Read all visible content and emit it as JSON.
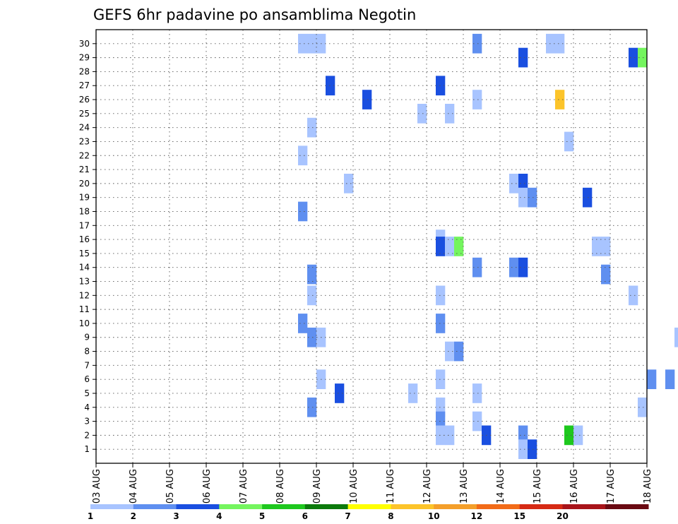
{
  "chart_data": {
    "type": "heatmap",
    "title": "GEFS 6hr padavine po ansamblima Negotin",
    "xlabel": "",
    "ylabel": "",
    "ylim": [
      0,
      31
    ],
    "y_ticks": [
      1,
      2,
      3,
      4,
      5,
      6,
      7,
      8,
      9,
      10,
      11,
      12,
      13,
      14,
      15,
      16,
      17,
      18,
      19,
      20,
      21,
      22,
      23,
      24,
      25,
      26,
      27,
      28,
      29,
      30
    ],
    "x_ticks": [
      "03 AUG",
      "04 AUG",
      "05 AUG",
      "06 AUG",
      "07 AUG",
      "08 AUG",
      "09 AUG",
      "10 AUG",
      "11 AUG",
      "12 AUG",
      "13 AUG",
      "14 AUG",
      "15 AUG",
      "16 AUG",
      "17 AUG",
      "18 AUG"
    ],
    "grid": true,
    "legend_position": "bottom",
    "colorbar": {
      "colors": [
        "#a8c4ff",
        "#5f8ff0",
        "#1a4fe0",
        "#74f55e",
        "#1ec81e",
        "#0c7a0c",
        "#ffff00",
        "#fcc42a",
        "#f49f2a",
        "#f26b18",
        "#d62a14",
        "#a8141a",
        "#6a0a12"
      ],
      "labels": [
        "1",
        "2",
        "3",
        "4",
        "5",
        "6",
        "7",
        "8",
        "10",
        "12",
        "15",
        "20"
      ]
    },
    "x_unit": "6h steps from 03 AUG 00Z",
    "cells": [
      {
        "x": 22,
        "y": 30,
        "v": 1.5
      },
      {
        "x": 23,
        "y": 30,
        "v": 1
      },
      {
        "x": 24,
        "y": 30,
        "v": 1
      },
      {
        "x": 41,
        "y": 30,
        "v": 2
      },
      {
        "x": 49,
        "y": 30,
        "v": 1
      },
      {
        "x": 50,
        "y": 30,
        "v": 1
      },
      {
        "x": 46,
        "y": 29,
        "v": 3
      },
      {
        "x": 58,
        "y": 29,
        "v": 3
      },
      {
        "x": 59,
        "y": 29,
        "v": 4
      },
      {
        "x": 25,
        "y": 27,
        "v": 3
      },
      {
        "x": 37,
        "y": 27,
        "v": 3
      },
      {
        "x": 29,
        "y": 26,
        "v": 3
      },
      {
        "x": 41,
        "y": 26,
        "v": 1
      },
      {
        "x": 50,
        "y": 26,
        "v": 8
      },
      {
        "x": 68,
        "y": 26,
        "v": 1
      },
      {
        "x": 35,
        "y": 25,
        "v": 1
      },
      {
        "x": 38,
        "y": 25,
        "v": 1
      },
      {
        "x": 23,
        "y": 24,
        "v": 1
      },
      {
        "x": 68,
        "y": 24,
        "v": 1
      },
      {
        "x": 51,
        "y": 23,
        "v": 1
      },
      {
        "x": 67,
        "y": 23,
        "v": 3
      },
      {
        "x": 68,
        "y": 23,
        "v": 1
      },
      {
        "x": 22,
        "y": 22,
        "v": 1
      },
      {
        "x": 64,
        "y": 22,
        "v": 1
      },
      {
        "x": 67,
        "y": 22,
        "v": 1
      },
      {
        "x": 27,
        "y": 20,
        "v": 1
      },
      {
        "x": 45,
        "y": 20,
        "v": 1
      },
      {
        "x": 46,
        "y": 20,
        "v": 3
      },
      {
        "x": 46,
        "y": 19,
        "v": 1
      },
      {
        "x": 47,
        "y": 19,
        "v": 2
      },
      {
        "x": 53,
        "y": 19,
        "v": 3
      },
      {
        "x": 69,
        "y": 19,
        "v": 1
      },
      {
        "x": 22,
        "y": 18,
        "v": 2
      },
      {
        "x": 37,
        "y": 16,
        "v": 1
      },
      {
        "x": 37,
        "y": 15.5,
        "v": 3
      },
      {
        "x": 38,
        "y": 15.5,
        "v": 1
      },
      {
        "x": 39,
        "y": 15.5,
        "v": 4
      },
      {
        "x": 54,
        "y": 15.5,
        "v": 1
      },
      {
        "x": 55,
        "y": 15.5,
        "v": 1
      },
      {
        "x": 67,
        "y": 15.5,
        "v": 2
      },
      {
        "x": 68,
        "y": 15.5,
        "v": 4
      },
      {
        "x": 69,
        "y": 15.5,
        "v": 1
      },
      {
        "x": 70,
        "y": 15.5,
        "v": 1
      },
      {
        "x": 41,
        "y": 14,
        "v": 2
      },
      {
        "x": 45,
        "y": 14,
        "v": 2
      },
      {
        "x": 46,
        "y": 14,
        "v": 3
      },
      {
        "x": 23,
        "y": 13.5,
        "v": 2
      },
      {
        "x": 55,
        "y": 13.5,
        "v": 2
      },
      {
        "x": 23,
        "y": 12,
        "v": 1
      },
      {
        "x": 37,
        "y": 12,
        "v": 1
      },
      {
        "x": 58,
        "y": 12,
        "v": 1
      },
      {
        "x": 22,
        "y": 10,
        "v": 2
      },
      {
        "x": 37,
        "y": 10,
        "v": 2
      },
      {
        "x": 23,
        "y": 9,
        "v": 2
      },
      {
        "x": 24,
        "y": 9,
        "v": 1
      },
      {
        "x": 63,
        "y": 9,
        "v": 1
      },
      {
        "x": 64,
        "y": 9,
        "v": 1
      },
      {
        "x": 38,
        "y": 8,
        "v": 1
      },
      {
        "x": 39,
        "y": 8,
        "v": 2
      },
      {
        "x": 24,
        "y": 6,
        "v": 1
      },
      {
        "x": 37,
        "y": 6,
        "v": 1
      },
      {
        "x": 60,
        "y": 6,
        "v": 2
      },
      {
        "x": 62,
        "y": 6,
        "v": 2
      },
      {
        "x": 26,
        "y": 5,
        "v": 3
      },
      {
        "x": 34,
        "y": 5,
        "v": 1
      },
      {
        "x": 41,
        "y": 5,
        "v": 1
      },
      {
        "x": 23,
        "y": 4,
        "v": 2
      },
      {
        "x": 37,
        "y": 4,
        "v": 1
      },
      {
        "x": 59,
        "y": 4,
        "v": 1
      },
      {
        "x": 37,
        "y": 3,
        "v": 2
      },
      {
        "x": 41,
        "y": 3,
        "v": 1
      },
      {
        "x": 37,
        "y": 2,
        "v": 1
      },
      {
        "x": 38,
        "y": 2,
        "v": 1
      },
      {
        "x": 42,
        "y": 2,
        "v": 3
      },
      {
        "x": 46,
        "y": 2,
        "v": 2
      },
      {
        "x": 51,
        "y": 2,
        "v": 5
      },
      {
        "x": 52,
        "y": 2,
        "v": 1
      },
      {
        "x": 46,
        "y": 1,
        "v": 1
      },
      {
        "x": 47,
        "y": 1,
        "v": 3
      }
    ]
  }
}
